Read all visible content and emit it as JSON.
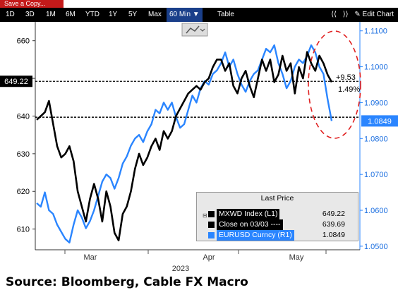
{
  "header": {
    "save_label": "Save a Copy...",
    "ranges": [
      "1D",
      "3D",
      "1M",
      "6M",
      "YTD",
      "1Y",
      "5Y",
      "Max"
    ],
    "interval": "60 Min ▼",
    "table": "Table",
    "edit_chart": "✎ Edit Chart",
    "tools_icons": [
      "expand-icon",
      "shrink-icon"
    ]
  },
  "source": "Source: Bloomberg, Cable FX Macro",
  "legend": {
    "title": "Last Price",
    "rows": [
      {
        "label": "MXWD Index  (L1)",
        "value": "649.22",
        "color": "#000000"
      },
      {
        "label": "Close on 03/03 ----",
        "value": "639.69",
        "color": "#000000"
      },
      {
        "label": "EURUSD Curncy  (R1)",
        "value": "1.0849",
        "color": "#2a85ff"
      }
    ]
  },
  "annotations": {
    "change_abs": "+9.53",
    "change_pct": "1.49%"
  },
  "chart_data": {
    "type": "line",
    "x_ticks": [
      "Mar",
      "Apr",
      "May"
    ],
    "x_year": "2023",
    "left_axis": {
      "ticks": [
        610,
        620,
        630,
        640,
        650,
        660
      ],
      "range": [
        604.5,
        665
      ],
      "last_label": "649.22"
    },
    "right_axis": {
      "ticks": [
        "1.0500",
        "1.0600",
        "1.0700",
        "1.0800",
        "1.0900",
        "1.1000",
        "1.1100"
      ],
      "range": [
        1.049,
        1.1125
      ],
      "last_label": "1.0849"
    },
    "reference_line": {
      "name": "Close on 03/03",
      "value": 639.69
    },
    "series": [
      {
        "name": "MXWD Index",
        "axis": "left",
        "color": "#000000",
        "values": [
          639,
          640,
          641,
          644,
          638,
          632,
          629,
          630,
          632,
          628,
          620,
          616,
          612,
          618,
          622,
          618,
          612,
          620,
          616,
          609,
          607,
          614,
          616,
          620,
          626,
          630,
          627,
          629,
          632,
          634,
          631,
          636,
          634,
          636,
          640,
          642,
          644,
          646,
          647,
          648,
          647,
          649,
          650,
          653,
          655,
          655,
          652,
          654,
          648,
          646,
          650,
          652,
          648,
          645,
          650,
          655,
          652,
          655,
          649,
          651,
          656,
          652,
          654,
          646,
          653,
          650,
          657,
          654,
          652,
          656,
          654,
          651,
          649
        ]
      },
      {
        "name": "EURUSD Curncy",
        "axis": "right",
        "color": "#2a85ff",
        "values": [
          1.062,
          1.061,
          1.065,
          1.06,
          1.059,
          1.056,
          1.054,
          1.052,
          1.051,
          1.056,
          1.06,
          1.058,
          1.055,
          1.057,
          1.06,
          1.064,
          1.068,
          1.07,
          1.069,
          1.066,
          1.069,
          1.073,
          1.075,
          1.078,
          1.08,
          1.081,
          1.079,
          1.082,
          1.084,
          1.088,
          1.087,
          1.09,
          1.088,
          1.09,
          1.086,
          1.083,
          1.084,
          1.088,
          1.092,
          1.09,
          1.094,
          1.096,
          1.095,
          1.098,
          1.099,
          1.101,
          1.104,
          1.1,
          1.102,
          1.098,
          1.095,
          1.093,
          1.096,
          1.098,
          1.099,
          1.102,
          1.105,
          1.104,
          1.106,
          1.101,
          1.098,
          1.094,
          1.096,
          1.1,
          1.102,
          1.101,
          1.103,
          1.106,
          1.104,
          1.1,
          1.098,
          1.091,
          1.0849
        ]
      }
    ]
  }
}
